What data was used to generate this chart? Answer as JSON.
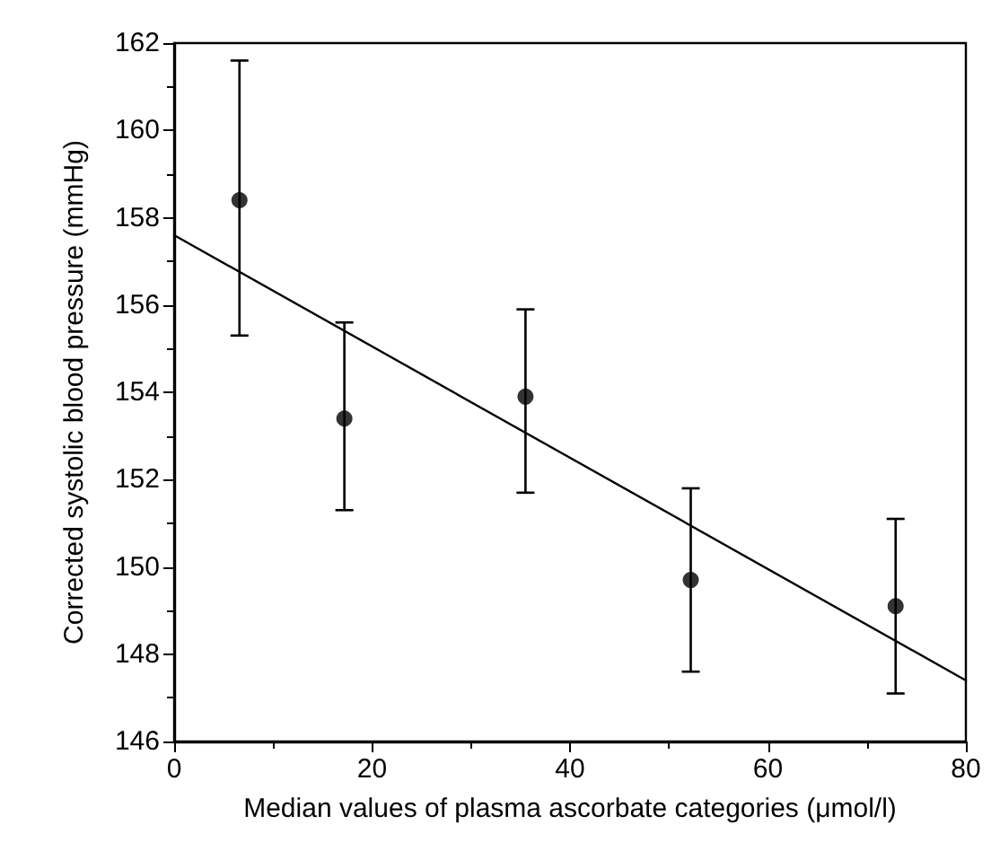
{
  "chart_data": {
    "type": "scatter",
    "xlabel": "Median values of plasma ascorbate categories (μmol/l)",
    "ylabel": "Corrected systolic blood pressure (mmHg)",
    "xlim": [
      0,
      80
    ],
    "xticks": [
      0,
      20,
      40,
      60,
      80
    ],
    "ylim": [
      146,
      162
    ],
    "yticks": [
      146,
      148,
      150,
      152,
      154,
      156,
      158,
      160,
      162
    ],
    "grid": false,
    "marker": "circle",
    "series": [
      {
        "color": "#000000",
        "x": [
          6.6,
          17.2,
          35.5,
          52.2,
          72.9
        ],
        "values": [
          158.4,
          153.4,
          153.9,
          149.7,
          149.1
        ],
        "errors": [
          [
            155.3,
            161.6
          ],
          [
            151.3,
            155.6
          ],
          [
            151.7,
            155.9
          ],
          [
            147.6,
            151.8
          ],
          [
            147.1,
            151.1
          ]
        ]
      },
      {
        "type": "line",
        "color": "#000000",
        "x": [
          0,
          80
        ],
        "values": [
          157.6,
          147.4
        ],
        "marker": "none",
        "line_style": "solid"
      }
    ]
  }
}
